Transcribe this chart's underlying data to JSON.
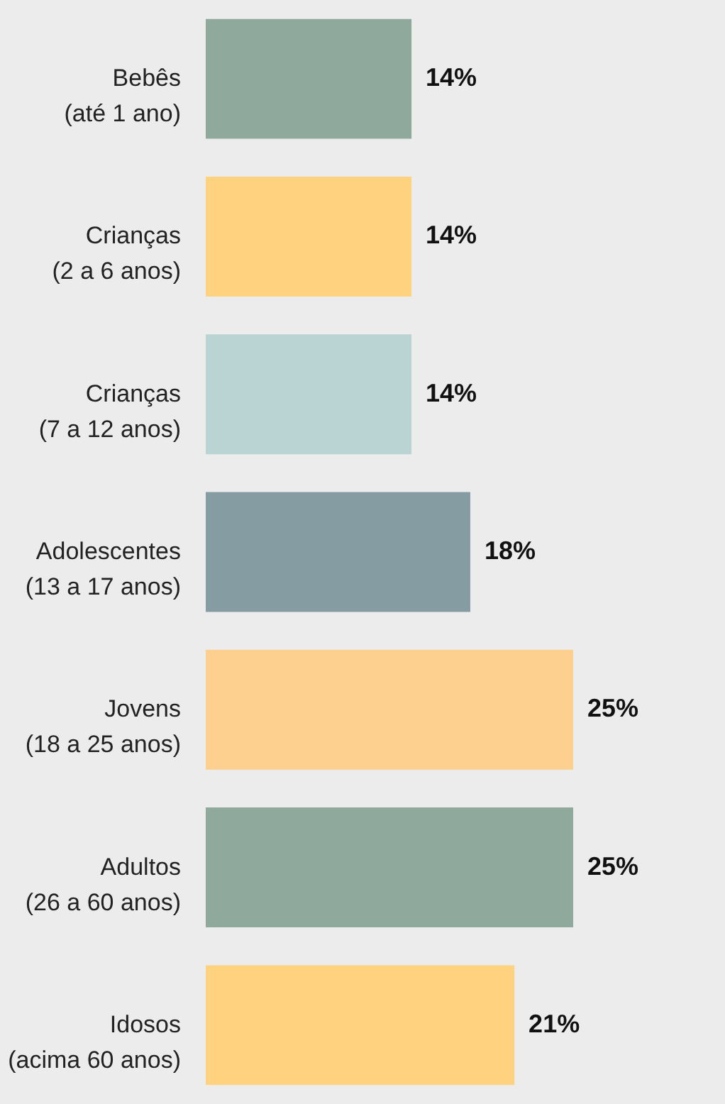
{
  "chart_data": {
    "type": "bar",
    "orientation": "horizontal",
    "categories": [
      "Bebês\n(até 1 ano)",
      "Crianças\n(2 a 6 anos)",
      "Crianças\n(7 a 12 anos)",
      "Adolescentes\n(13 a 17 anos)",
      "Jovens\n(18 a 25 anos)",
      "Adultos\n(26 a 60 anos)",
      "Idosos\n(acima 60 anos)"
    ],
    "values": [
      14,
      14,
      14,
      18,
      25,
      25,
      21
    ],
    "colors": [
      "#8faa9c",
      "#ffd27f",
      "#b9d4d2",
      "#859ca3",
      "#fdd08f",
      "#8faa9c",
      "#ffd27f"
    ],
    "value_labels": [
      "14%",
      "14%",
      "14%",
      "18%",
      "25%",
      "25%",
      "21%"
    ],
    "grid": false
  }
}
